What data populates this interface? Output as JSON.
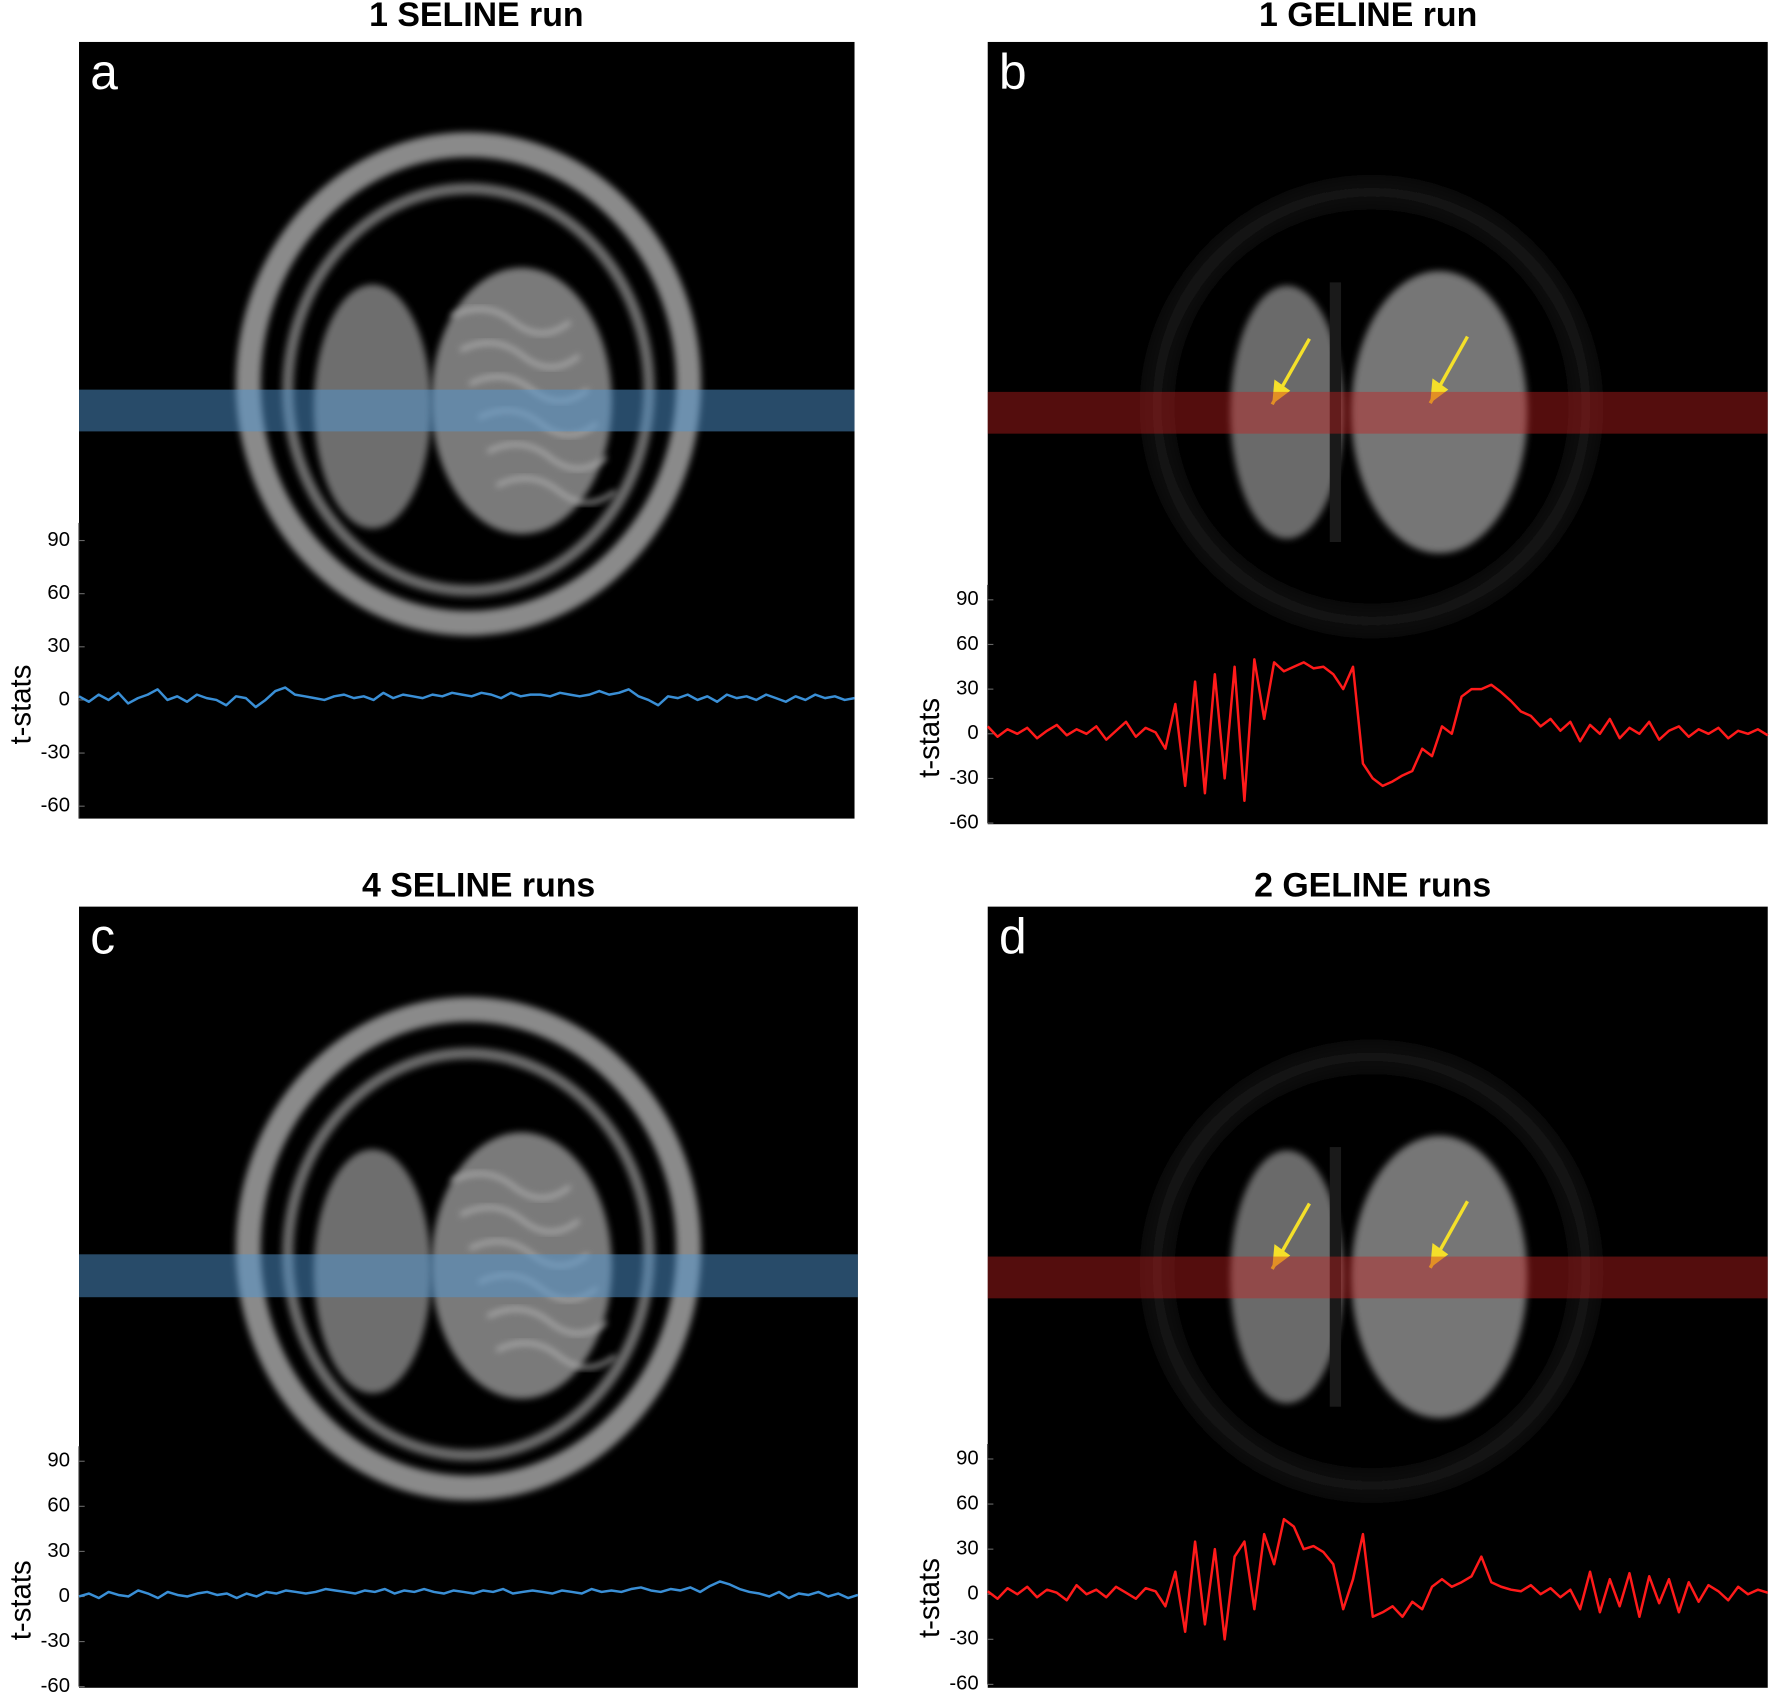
{
  "chart_data": [
    {
      "type": "line",
      "title": "1 SELINE run",
      "label": "a",
      "ylabel": "t-stats",
      "ylim": [
        -67,
        100
      ],
      "yticks": [
        90,
        60,
        30,
        0,
        -30,
        -60
      ],
      "series": [
        {
          "color": "#3a8fd6",
          "values": [
            2,
            -1,
            3,
            0,
            4,
            -2,
            1,
            3,
            6,
            0,
            2,
            -1,
            3,
            1,
            0,
            -3,
            2,
            1,
            -4,
            0,
            5,
            7,
            3,
            2,
            1,
            0,
            2,
            3,
            1,
            2,
            0,
            4,
            1,
            3,
            2,
            1,
            3,
            2,
            4,
            3,
            2,
            4,
            3,
            1,
            4,
            2,
            3,
            3,
            2,
            4,
            3,
            2,
            3,
            5,
            3,
            4,
            6,
            2,
            0,
            -3,
            2,
            1,
            3,
            0,
            2,
            -1,
            3,
            1,
            2,
            0,
            3,
            1,
            -1,
            2,
            0,
            3,
            1,
            2,
            0,
            1
          ]
        }
      ]
    },
    {
      "type": "line",
      "title": "1 GELINE run",
      "label": "b",
      "ylabel": "t-stats",
      "ylim": [
        -60,
        100
      ],
      "yticks": [
        90,
        60,
        30,
        0,
        -30,
        -60
      ],
      "series": [
        {
          "color": "#ff1a1a",
          "values": [
            5,
            -2,
            3,
            0,
            4,
            -3,
            2,
            6,
            -1,
            3,
            0,
            5,
            -4,
            2,
            8,
            -2,
            4,
            1,
            -10,
            20,
            -35,
            35,
            -40,
            40,
            -30,
            45,
            -45,
            50,
            10,
            48,
            42,
            45,
            48,
            44,
            45,
            40,
            30,
            45,
            -20,
            -30,
            -35,
            -32,
            -28,
            -25,
            -10,
            -15,
            5,
            0,
            25,
            30,
            30,
            33,
            28,
            22,
            15,
            12,
            5,
            10,
            2,
            8,
            -5,
            6,
            0,
            10,
            -3,
            4,
            0,
            8,
            -4,
            2,
            5,
            -2,
            3,
            0,
            4,
            -3,
            2,
            0,
            3,
            -1
          ]
        }
      ]
    },
    {
      "type": "line",
      "title": "4 SELINE runs",
      "label": "c",
      "ylabel": "t-stats",
      "ylim": [
        -60,
        100
      ],
      "yticks": [
        90,
        60,
        30,
        0,
        -30,
        -60
      ],
      "series": [
        {
          "color": "#3a8fd6",
          "values": [
            0,
            2,
            -1,
            3,
            1,
            0,
            4,
            2,
            -1,
            3,
            1,
            0,
            2,
            3,
            1,
            2,
            -1,
            2,
            0,
            3,
            2,
            4,
            3,
            2,
            3,
            5,
            4,
            3,
            2,
            4,
            3,
            5,
            2,
            4,
            3,
            5,
            3,
            2,
            4,
            3,
            2,
            4,
            3,
            5,
            2,
            3,
            4,
            3,
            2,
            4,
            3,
            2,
            5,
            3,
            4,
            3,
            5,
            6,
            4,
            3,
            5,
            4,
            6,
            3,
            7,
            10,
            8,
            5,
            3,
            2,
            0,
            3,
            -1,
            2,
            1,
            3,
            0,
            2,
            -1,
            1
          ]
        }
      ]
    },
    {
      "type": "line",
      "title": "2 GELINE runs",
      "label": "d",
      "ylabel": "t-stats",
      "ylim": [
        -60,
        100
      ],
      "yticks": [
        90,
        60,
        30,
        0,
        -30,
        -60
      ],
      "series": [
        {
          "color": "#ff1a1a",
          "values": [
            2,
            -3,
            4,
            0,
            5,
            -2,
            3,
            1,
            -4,
            6,
            0,
            3,
            -2,
            5,
            1,
            -3,
            4,
            2,
            -8,
            15,
            -25,
            35,
            -20,
            30,
            -30,
            25,
            35,
            -10,
            40,
            20,
            50,
            45,
            30,
            32,
            28,
            20,
            -10,
            10,
            40,
            -15,
            -12,
            -8,
            -15,
            -5,
            -10,
            5,
            10,
            5,
            8,
            12,
            25,
            8,
            5,
            3,
            2,
            6,
            0,
            4,
            -2,
            3,
            -10,
            15,
            -12,
            10,
            -8,
            14,
            -15,
            12,
            -6,
            10,
            -12,
            8,
            -5,
            6,
            2,
            -4,
            5,
            0,
            3,
            1
          ]
        }
      ]
    }
  ]
}
